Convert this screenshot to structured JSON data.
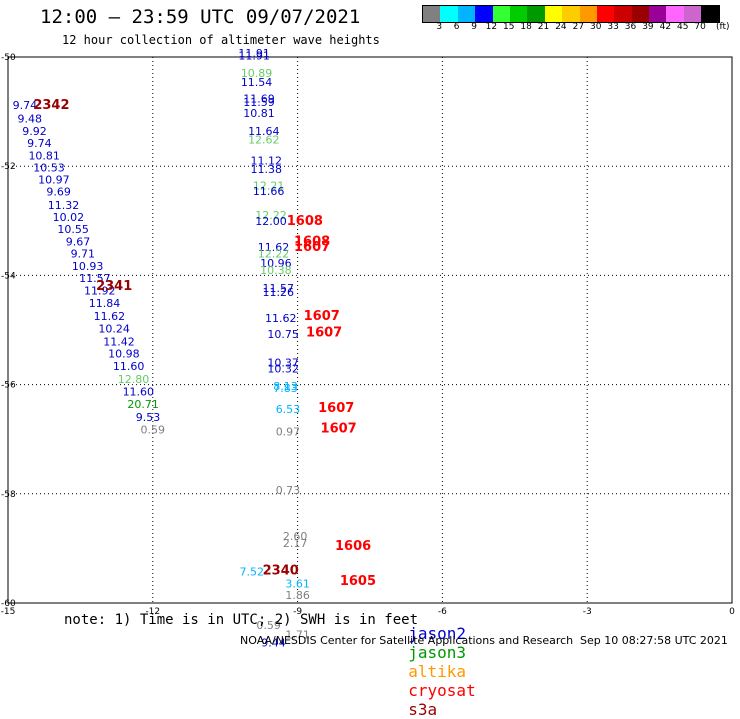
{
  "header": {
    "title": "12:00 — 23:59 UTC 09/07/2021",
    "subtitle": "12 hour collection of altimeter wave heights"
  },
  "colorbar": {
    "colors": [
      "#808080",
      "#00ffff",
      "#00b4ff",
      "#0000ff",
      "#33ff33",
      "#00cc00",
      "#009900",
      "#ffff00",
      "#ffcc00",
      "#ff9900",
      "#ff0000",
      "#cc0000",
      "#990000",
      "#990099",
      "#ff66ff",
      "#cc66cc",
      "#000000"
    ],
    "labels": [
      "3",
      "6",
      "9",
      "12",
      "15",
      "18",
      "21",
      "24",
      "27",
      "30",
      "33",
      "36",
      "39",
      "42",
      "45",
      "70"
    ],
    "unit": "(ft)"
  },
  "footer": {
    "note": "note: 1) Time is in UTC; 2) SWH is in feet",
    "credit": "NOAA/NESDIS Center for Satellite Applications and Research",
    "timestamp": "Sep 10 08:27:58 UTC 2021"
  },
  "legend": [
    {
      "name": "jason2",
      "color": "#0000cc"
    },
    {
      "name": "jason3",
      "color": "#009900"
    },
    {
      "name": "altika",
      "color": "#ff9900"
    },
    {
      "name": "cryosat",
      "color": "#ff0000"
    },
    {
      "name": "s3a",
      "color": "#990000"
    }
  ],
  "chart_data": {
    "type": "scatter",
    "xlim": [
      -15,
      0
    ],
    "ylim": [
      -60,
      -50
    ],
    "xticks": [
      -15,
      -12,
      -9,
      -6,
      -3,
      0
    ],
    "yticks": [
      -50,
      -52,
      -54,
      -56,
      -58,
      -60
    ],
    "xtick_labels": [
      "-15",
      "-12",
      "-9",
      "-6",
      "-3",
      "0"
    ],
    "ytick_labels": [
      "-50",
      "-52",
      "-54",
      "-56",
      "-58",
      "-60"
    ],
    "grid": true,
    "points": [
      {
        "x": -14.65,
        "y": -50.95,
        "v": "9.74",
        "c": "#0000cc"
      },
      {
        "x": -14.55,
        "y": -51.2,
        "v": "9.48",
        "c": "#0000cc"
      },
      {
        "x": -14.45,
        "y": -51.43,
        "v": "9.92",
        "c": "#0000cc"
      },
      {
        "x": -14.35,
        "y": -51.65,
        "v": "9.74",
        "c": "#0000cc"
      },
      {
        "x": -14.25,
        "y": -51.88,
        "v": "10.81",
        "c": "#0000cc"
      },
      {
        "x": -14.15,
        "y": -52.1,
        "v": "10.53",
        "c": "#0000cc"
      },
      {
        "x": -14.05,
        "y": -52.32,
        "v": "10.97",
        "c": "#0000cc"
      },
      {
        "x": -13.95,
        "y": -52.54,
        "v": "9.69",
        "c": "#0000cc"
      },
      {
        "x": -13.85,
        "y": -52.78,
        "v": "11.32",
        "c": "#0000cc"
      },
      {
        "x": -13.75,
        "y": -53.0,
        "v": "10.02",
        "c": "#0000cc"
      },
      {
        "x": -13.65,
        "y": -53.22,
        "v": "10.55",
        "c": "#0000cc"
      },
      {
        "x": -13.55,
        "y": -53.45,
        "v": "9.67",
        "c": "#0000cc"
      },
      {
        "x": -13.45,
        "y": -53.67,
        "v": "9.71",
        "c": "#0000cc"
      },
      {
        "x": -13.35,
        "y": -53.9,
        "v": "10.93",
        "c": "#0000cc"
      },
      {
        "x": -13.2,
        "y": -54.12,
        "v": "11.57",
        "c": "#0000cc"
      },
      {
        "x": -13.1,
        "y": -54.35,
        "v": "11.92",
        "c": "#0000cc"
      },
      {
        "x": -13.0,
        "y": -54.58,
        "v": "11.84",
        "c": "#0000cc"
      },
      {
        "x": -12.9,
        "y": -54.82,
        "v": "11.62",
        "c": "#0000cc"
      },
      {
        "x": -12.8,
        "y": -55.05,
        "v": "10.24",
        "c": "#0000cc"
      },
      {
        "x": -12.7,
        "y": -55.28,
        "v": "11.42",
        "c": "#0000cc"
      },
      {
        "x": -12.6,
        "y": -55.5,
        "v": "10.98",
        "c": "#0000cc"
      },
      {
        "x": -12.5,
        "y": -55.73,
        "v": "11.60",
        "c": "#0000cc"
      },
      {
        "x": -12.4,
        "y": -55.97,
        "v": "12.80",
        "c": "#66cc66"
      },
      {
        "x": -12.3,
        "y": -56.2,
        "v": "11.60",
        "c": "#0000cc"
      },
      {
        "x": -12.2,
        "y": -56.43,
        "v": "20.71",
        "c": "#009900"
      },
      {
        "x": -12.1,
        "y": -56.67,
        "v": "9.53",
        "c": "#0000cc"
      },
      {
        "x": -12.0,
        "y": -56.9,
        "v": "0.59",
        "c": "#808080"
      },
      {
        "x": -9.9,
        "y": -50.0,
        "v": "11.91",
        "c": "#0000cc"
      },
      {
        "x": -9.9,
        "y": -50.05,
        "v": "11.91",
        "c": "#0000cc"
      },
      {
        "x": -9.85,
        "y": -50.37,
        "v": "10.89",
        "c": "#66cc66"
      },
      {
        "x": -9.85,
        "y": -50.53,
        "v": "11.54",
        "c": "#0000cc"
      },
      {
        "x": -9.8,
        "y": -50.83,
        "v": "11.69",
        "c": "#0000cc"
      },
      {
        "x": -9.8,
        "y": -50.9,
        "v": "11.59",
        "c": "#0000cc"
      },
      {
        "x": -9.8,
        "y": -51.1,
        "v": "10.81",
        "c": "#0000cc"
      },
      {
        "x": -9.7,
        "y": -51.43,
        "v": "11.64",
        "c": "#0000cc"
      },
      {
        "x": -9.7,
        "y": -51.58,
        "v": "12.62",
        "c": "#66cc66"
      },
      {
        "x": -9.65,
        "y": -51.97,
        "v": "11.12",
        "c": "#0000cc"
      },
      {
        "x": -9.65,
        "y": -52.12,
        "v": "11.38",
        "c": "#0000cc"
      },
      {
        "x": -9.6,
        "y": -52.43,
        "v": "12.21",
        "c": "#66cc66"
      },
      {
        "x": -9.6,
        "y": -52.53,
        "v": "11.66",
        "c": "#0000cc"
      },
      {
        "x": -9.55,
        "y": -52.97,
        "v": "12.22",
        "c": "#66cc66"
      },
      {
        "x": -9.55,
        "y": -53.08,
        "v": "12.00",
        "c": "#0000cc"
      },
      {
        "x": -9.5,
        "y": -53.55,
        "v": "11.62",
        "c": "#0000cc"
      },
      {
        "x": -9.5,
        "y": -53.67,
        "v": "12.22",
        "c": "#66cc66"
      },
      {
        "x": -9.45,
        "y": -53.85,
        "v": "10.96",
        "c": "#0000cc"
      },
      {
        "x": -9.45,
        "y": -53.97,
        "v": "10.38",
        "c": "#66cc66"
      },
      {
        "x": -9.4,
        "y": -54.3,
        "v": "11.57",
        "c": "#0000cc"
      },
      {
        "x": -9.4,
        "y": -54.38,
        "v": "11.26",
        "c": "#0000cc"
      },
      {
        "x": -9.35,
        "y": -54.85,
        "v": "11.62",
        "c": "#0000cc"
      },
      {
        "x": -9.3,
        "y": -55.15,
        "v": "10.75",
        "c": "#0000cc"
      },
      {
        "x": -9.3,
        "y": -55.67,
        "v": "10.37",
        "c": "#0000cc"
      },
      {
        "x": -9.3,
        "y": -55.78,
        "v": "10.32",
        "c": "#0000cc"
      },
      {
        "x": -9.25,
        "y": -56.1,
        "v": "8.13",
        "c": "#00b4ff"
      },
      {
        "x": -9.25,
        "y": -56.14,
        "v": "7.83",
        "c": "#00b4ff"
      },
      {
        "x": -9.2,
        "y": -56.52,
        "v": "6.53",
        "c": "#00b4ff"
      },
      {
        "x": -9.2,
        "y": -56.93,
        "v": "0.97",
        "c": "#808080"
      },
      {
        "x": -9.2,
        "y": -58.0,
        "v": "0.73",
        "c": "#808080"
      },
      {
        "x": -9.05,
        "y": -58.85,
        "v": "2.60",
        "c": "#808080"
      },
      {
        "x": -9.05,
        "y": -58.97,
        "v": "2.17",
        "c": "#808080"
      },
      {
        "x": -9.95,
        "y": -59.5,
        "v": "7.52",
        "c": "#00b4ff"
      },
      {
        "x": -9.0,
        "y": -59.72,
        "v": "3.61",
        "c": "#00b4ff"
      },
      {
        "x": -9.0,
        "y": -59.93,
        "v": "1.86",
        "c": "#808080"
      },
      {
        "x": -9.6,
        "y": -60.48,
        "v": "0.59",
        "c": "#808080"
      },
      {
        "x": -9.0,
        "y": -60.65,
        "v": "1.71",
        "c": "#808080"
      },
      {
        "x": -9.5,
        "y": -60.8,
        "v": "9.44",
        "c": "#0000cc"
      }
    ],
    "markers": [
      {
        "x": -14.1,
        "y": -50.95,
        "v": "2342",
        "c": "#990000"
      },
      {
        "x": -12.8,
        "y": -54.27,
        "v": "2341",
        "c": "#990000"
      },
      {
        "x": -8.85,
        "y": -53.08,
        "v": "1608",
        "c": "#ff0000"
      },
      {
        "x": -8.7,
        "y": -53.45,
        "v": "1608",
        "c": "#ff0000"
      },
      {
        "x": -8.7,
        "y": -53.55,
        "v": "1607",
        "c": "#ff0000"
      },
      {
        "x": -8.5,
        "y": -54.82,
        "v": "1607",
        "c": "#ff0000"
      },
      {
        "x": -8.45,
        "y": -55.12,
        "v": "1607",
        "c": "#ff0000"
      },
      {
        "x": -8.2,
        "y": -56.5,
        "v": "1607",
        "c": "#ff0000"
      },
      {
        "x": -8.15,
        "y": -56.88,
        "v": "1607",
        "c": "#ff0000"
      },
      {
        "x": -7.85,
        "y": -59.03,
        "v": "1606",
        "c": "#ff0000"
      },
      {
        "x": -7.75,
        "y": -59.67,
        "v": "1605",
        "c": "#ff0000"
      },
      {
        "x": -9.35,
        "y": -59.48,
        "v": "2340",
        "c": "#990000"
      }
    ]
  }
}
